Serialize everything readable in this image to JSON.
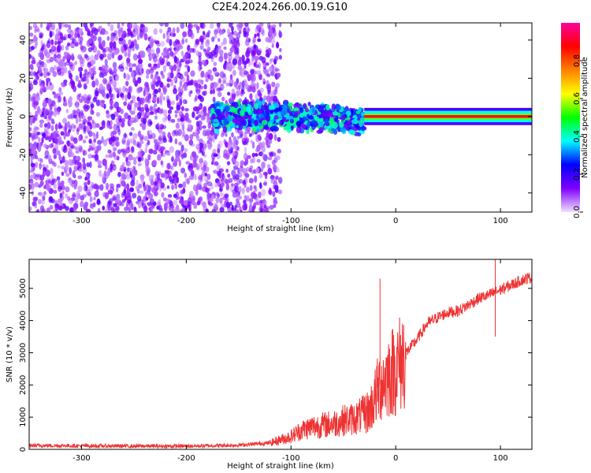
{
  "title": "C2E4.2024.266.00.19.G10",
  "chart_data": [
    {
      "type": "heatmap",
      "xlabel": "Height of straight line (km)",
      "ylabel": "Frequency (Hz)",
      "xlim": [
        -350,
        130
      ],
      "ylim": [
        -50,
        49
      ],
      "xticks": [
        -300,
        -200,
        -100,
        0,
        100
      ],
      "yticks": [
        -40,
        -20,
        0,
        20,
        40
      ],
      "colorbar": {
        "label": "Normalized spectral amplitude",
        "range": [
          0,
          1
        ],
        "ticks": [
          "0.0",
          "0.2",
          "0.4",
          "0.6",
          "0.8"
        ],
        "colormap": [
          "#f0e0ff",
          "#8000ff",
          "#0000ff",
          "#00ffff",
          "#00ff00",
          "#ffff00",
          "#ff8000",
          "#ff0000",
          "#ff00a0"
        ]
      },
      "regions": [
        {
          "x_range": [
            -350,
            -110
          ],
          "freq_range": [
            -50,
            49
          ],
          "amplitude": "low (0.0-0.2), scattered noise"
        },
        {
          "x_range": [
            -175,
            -30
          ],
          "freq_center": 0,
          "freq_halfwidth": 8,
          "amplitude": "0.2-0.5"
        },
        {
          "x_range": [
            -30,
            130
          ],
          "freq_center": 0,
          "freq_halfwidth": 3,
          "amplitude": "0.6-1.0, strong narrow line"
        }
      ]
    },
    {
      "type": "line",
      "xlabel": "Height of straight line (km)",
      "ylabel": "SNR (10 * v/v)",
      "xlim": [
        -350,
        130
      ],
      "ylim": [
        0,
        5900
      ],
      "xticks": [
        -300,
        -200,
        -100,
        0,
        100
      ],
      "yticks": [
        0,
        1000,
        2000,
        3000,
        4000,
        5000
      ],
      "color": "#ee3333",
      "series": [
        {
          "x": [
            -350,
            -300,
            -250,
            -200,
            -150,
            -120,
            -100,
            -90,
            -80,
            -70,
            -60,
            -50,
            -40,
            -30,
            -25,
            -20,
            -15,
            -10,
            -5,
            0,
            5,
            10,
            20,
            30,
            40,
            50,
            60,
            70,
            80,
            90,
            100,
            110,
            120,
            130
          ],
          "y": [
            120,
            110,
            100,
            100,
            130,
            200,
            400,
            600,
            700,
            750,
            800,
            900,
            950,
            1100,
            1200,
            1600,
            2000,
            2200,
            2400,
            2500,
            2700,
            3000,
            3400,
            3900,
            4100,
            4250,
            4300,
            4500,
            4700,
            4800,
            4950,
            5100,
            5250,
            5350
          ]
        }
      ],
      "spikes": [
        {
          "x": -15,
          "y": 5300
        },
        {
          "x": 95,
          "y": 5900
        },
        {
          "x": 95,
          "y": 3500
        }
      ]
    }
  ]
}
